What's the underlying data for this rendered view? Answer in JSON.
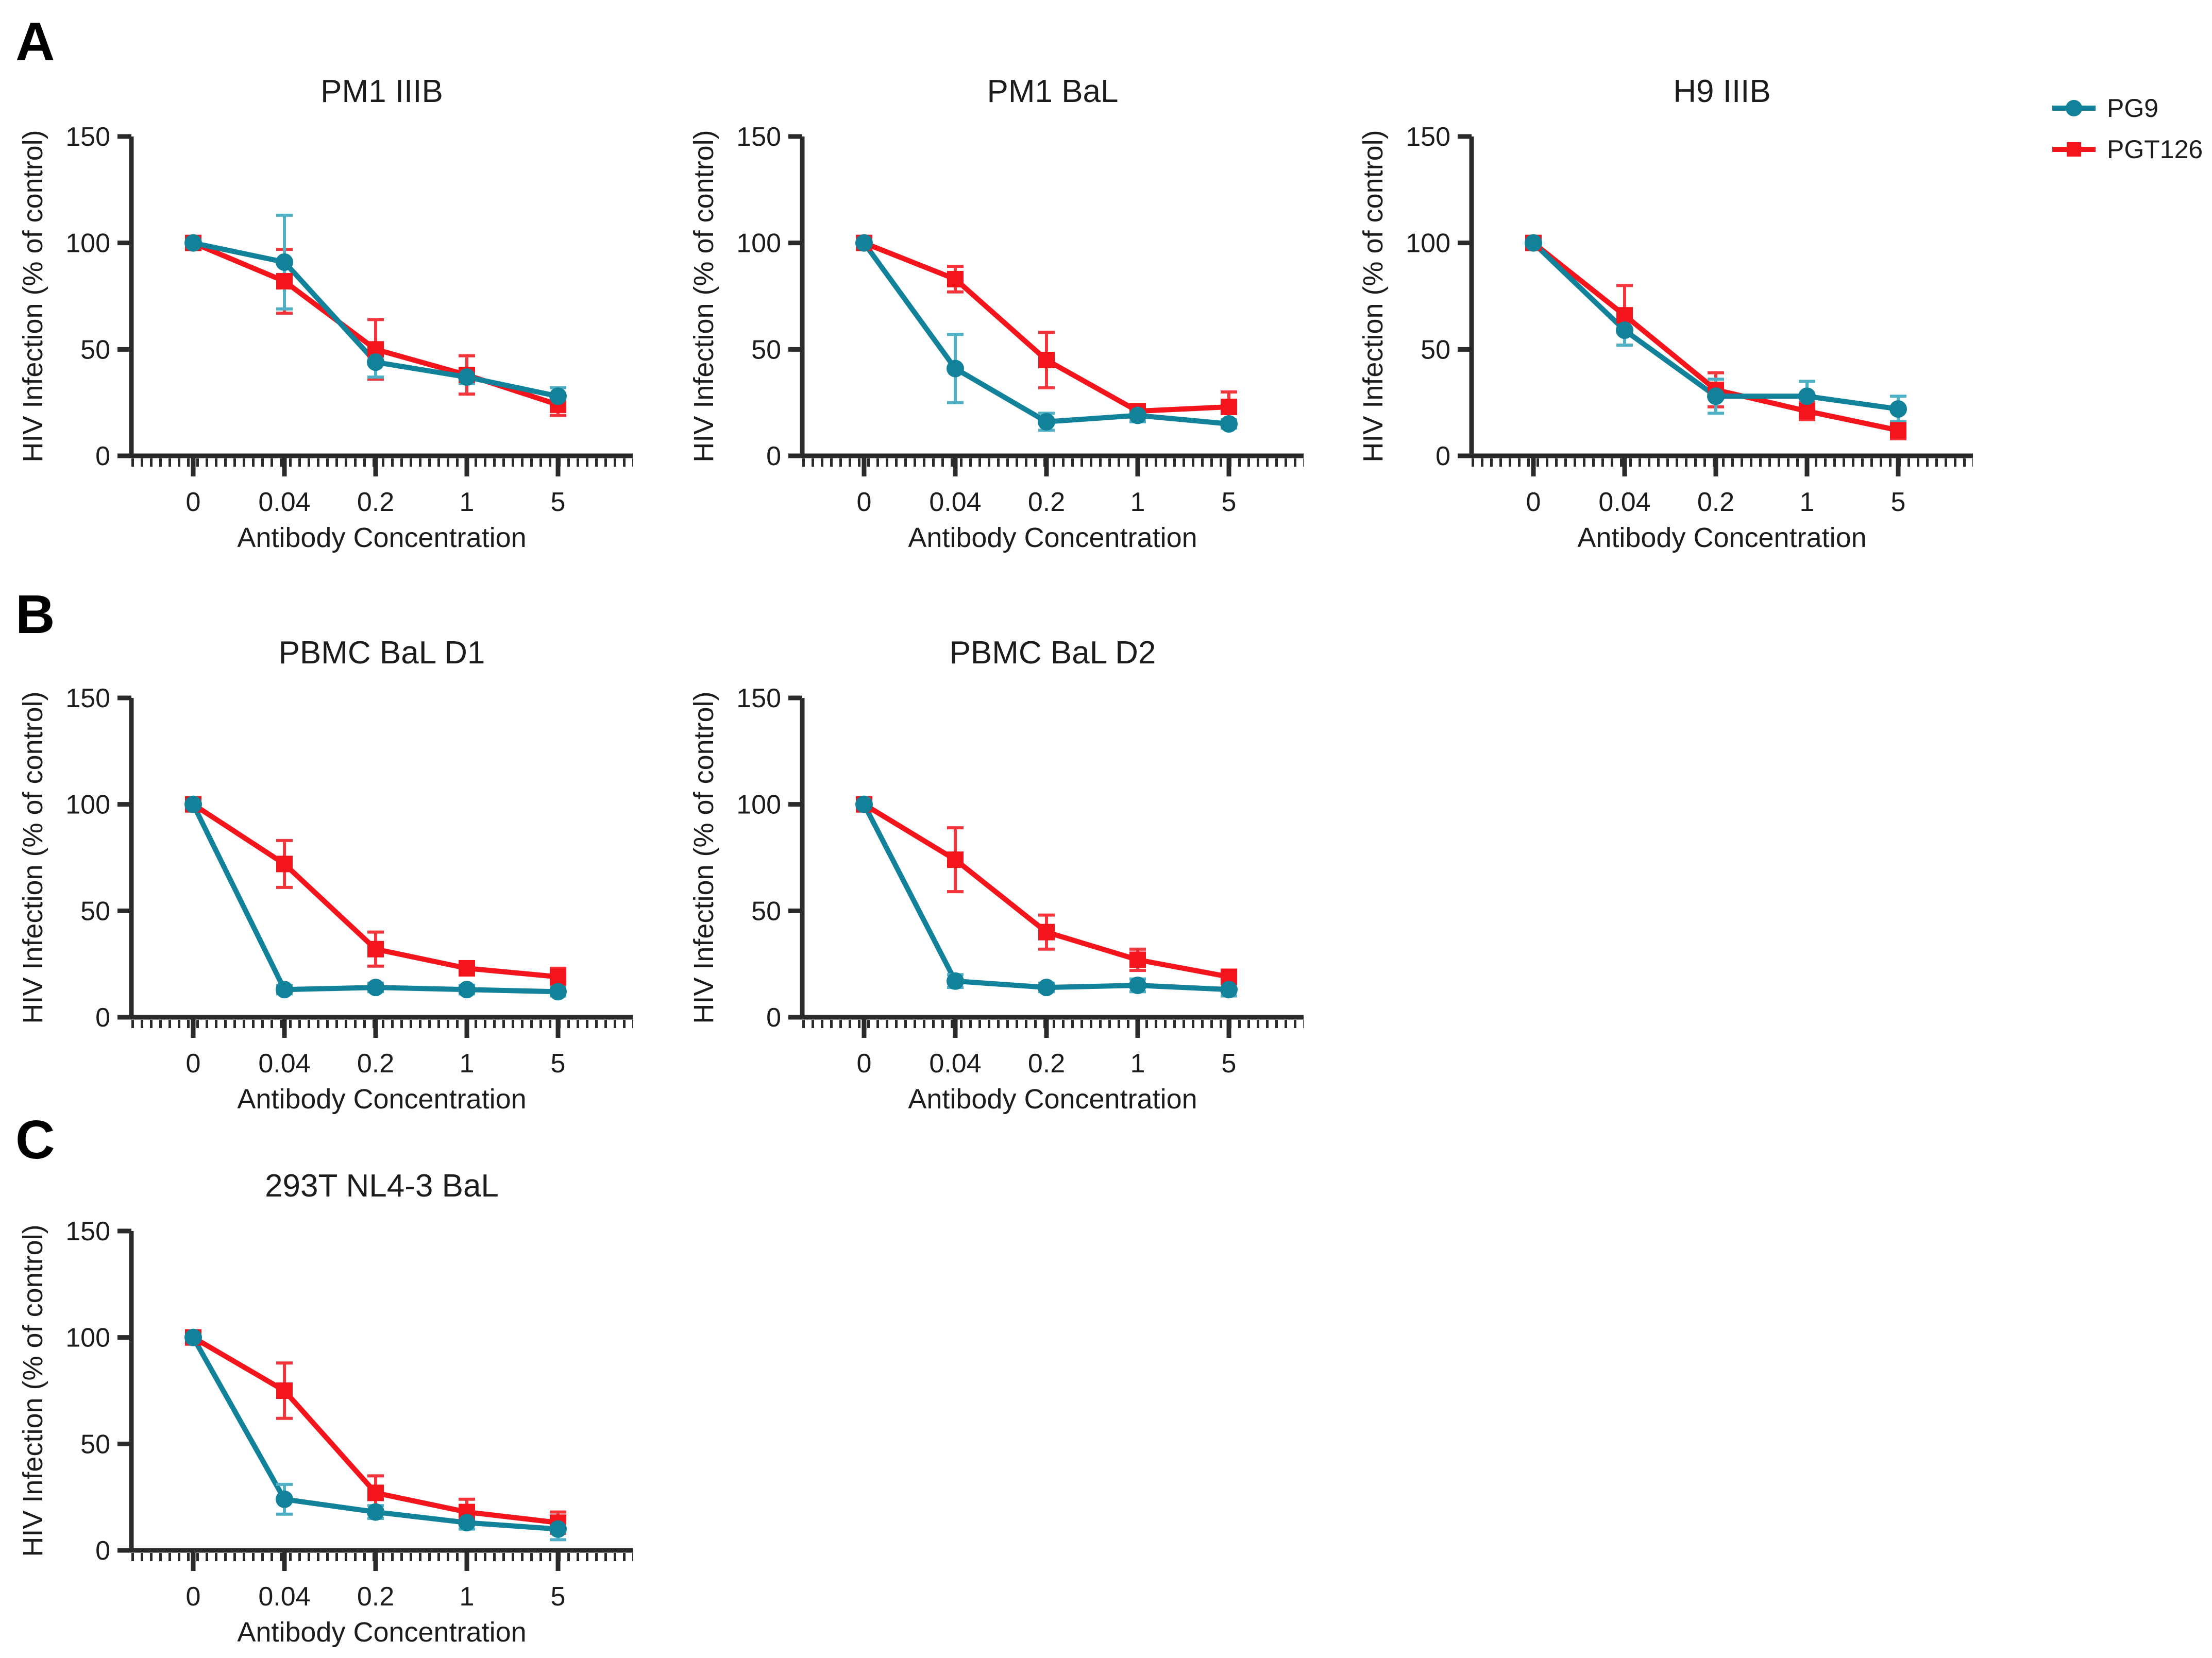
{
  "figure": {
    "panels": [
      {
        "label": "A"
      },
      {
        "label": "B"
      },
      {
        "label": "C"
      }
    ],
    "legend": {
      "items": [
        {
          "label": "PG9",
          "marker": "circle",
          "color": "#12829B",
          "error_color": "#4FB0C5"
        },
        {
          "label": "PGT126",
          "marker": "square",
          "color": "#F4141C",
          "error_color": "#F4353C"
        }
      ]
    }
  },
  "colors": {
    "axis": "#2A2A2A",
    "text": "#1C1C1C",
    "background": "#FFFFFF"
  },
  "chart_data": [
    {
      "panel": "A",
      "title": "PM1 IIIB",
      "type": "line",
      "xlabel": "Antibody Concentration",
      "ylabel": "HIV Infection (% of control)",
      "x_categories": [
        "0",
        "0.04",
        "0.2",
        "1",
        "5"
      ],
      "ylim": [
        0,
        150
      ],
      "yticks": [
        0,
        50,
        100,
        150
      ],
      "grid": false,
      "legend_position": "figure-top-right",
      "series": [
        {
          "name": "PG9",
          "marker": "circle",
          "values": [
            100,
            91,
            44,
            37,
            28
          ],
          "errors": [
            2,
            22,
            7,
            3,
            4
          ]
        },
        {
          "name": "PGT126",
          "marker": "square",
          "values": [
            100,
            82,
            50,
            38,
            24
          ],
          "errors": [
            2,
            15,
            14,
            9,
            5
          ]
        }
      ]
    },
    {
      "panel": "A",
      "title": "PM1 BaL",
      "type": "line",
      "xlabel": "Antibody Concentration",
      "ylabel": "HIV Infection (% of control)",
      "x_categories": [
        "0",
        "0.04",
        "0.2",
        "1",
        "5"
      ],
      "ylim": [
        0,
        150
      ],
      "yticks": [
        0,
        50,
        100,
        150
      ],
      "grid": false,
      "series": [
        {
          "name": "PG9",
          "marker": "circle",
          "values": [
            100,
            41,
            16,
            19,
            15
          ],
          "errors": [
            1,
            16,
            4,
            3,
            2
          ]
        },
        {
          "name": "PGT126",
          "marker": "square",
          "values": [
            100,
            83,
            45,
            21,
            23
          ],
          "errors": [
            1,
            6,
            13,
            2,
            7
          ]
        }
      ]
    },
    {
      "panel": "A",
      "title": "H9 IIIB",
      "type": "line",
      "xlabel": "Antibody Concentration",
      "ylabel": "HIV Infection (% of control)",
      "x_categories": [
        "0",
        "0.04",
        "0.2",
        "1",
        "5"
      ],
      "ylim": [
        0,
        150
      ],
      "yticks": [
        0,
        50,
        100,
        150
      ],
      "grid": false,
      "series": [
        {
          "name": "PG9",
          "marker": "circle",
          "values": [
            100,
            59,
            28,
            28,
            22
          ],
          "errors": [
            1,
            7,
            8,
            7,
            6
          ]
        },
        {
          "name": "PGT126",
          "marker": "square",
          "values": [
            100,
            66,
            31,
            21,
            12
          ],
          "errors": [
            1,
            14,
            8,
            4,
            4
          ]
        }
      ]
    },
    {
      "panel": "B",
      "title": "PBMC BaL D1",
      "type": "line",
      "xlabel": "Antibody Concentration",
      "ylabel": "HIV Infection (% of control)",
      "x_categories": [
        "0",
        "0.04",
        "0.2",
        "1",
        "5"
      ],
      "ylim": [
        0,
        150
      ],
      "yticks": [
        0,
        50,
        100,
        150
      ],
      "grid": false,
      "series": [
        {
          "name": "PG9",
          "marker": "circle",
          "values": [
            100,
            13,
            14,
            13,
            12
          ],
          "errors": [
            1,
            2,
            2,
            2,
            2
          ]
        },
        {
          "name": "PGT126",
          "marker": "square",
          "values": [
            100,
            72,
            32,
            23,
            19
          ],
          "errors": [
            2,
            11,
            8,
            3,
            4
          ]
        }
      ]
    },
    {
      "panel": "B",
      "title": "PBMC BaL D2",
      "type": "line",
      "xlabel": "Antibody Concentration",
      "ylabel": "HIV Infection (% of control)",
      "x_categories": [
        "0",
        "0.04",
        "0.2",
        "1",
        "5"
      ],
      "ylim": [
        0,
        150
      ],
      "yticks": [
        0,
        50,
        100,
        150
      ],
      "grid": false,
      "series": [
        {
          "name": "PG9",
          "marker": "circle",
          "values": [
            100,
            17,
            14,
            15,
            13
          ],
          "errors": [
            1,
            3,
            2,
            3,
            3
          ]
        },
        {
          "name": "PGT126",
          "marker": "square",
          "values": [
            100,
            74,
            40,
            27,
            19
          ],
          "errors": [
            2,
            15,
            8,
            5,
            3
          ]
        }
      ]
    },
    {
      "panel": "C",
      "title": "293T NL4-3 BaL",
      "type": "line",
      "xlabel": "Antibody Concentration",
      "ylabel": "HIV Infection (% of control)",
      "x_categories": [
        "0",
        "0.04",
        "0.2",
        "1",
        "5"
      ],
      "ylim": [
        0,
        150
      ],
      "yticks": [
        0,
        50,
        100,
        150
      ],
      "grid": false,
      "series": [
        {
          "name": "PG9",
          "marker": "circle",
          "values": [
            100,
            24,
            18,
            13,
            10
          ],
          "errors": [
            1,
            7,
            3,
            3,
            5
          ]
        },
        {
          "name": "PGT126",
          "marker": "square",
          "values": [
            100,
            75,
            27,
            18,
            13
          ],
          "errors": [
            2,
            13,
            8,
            6,
            5
          ]
        }
      ]
    }
  ]
}
